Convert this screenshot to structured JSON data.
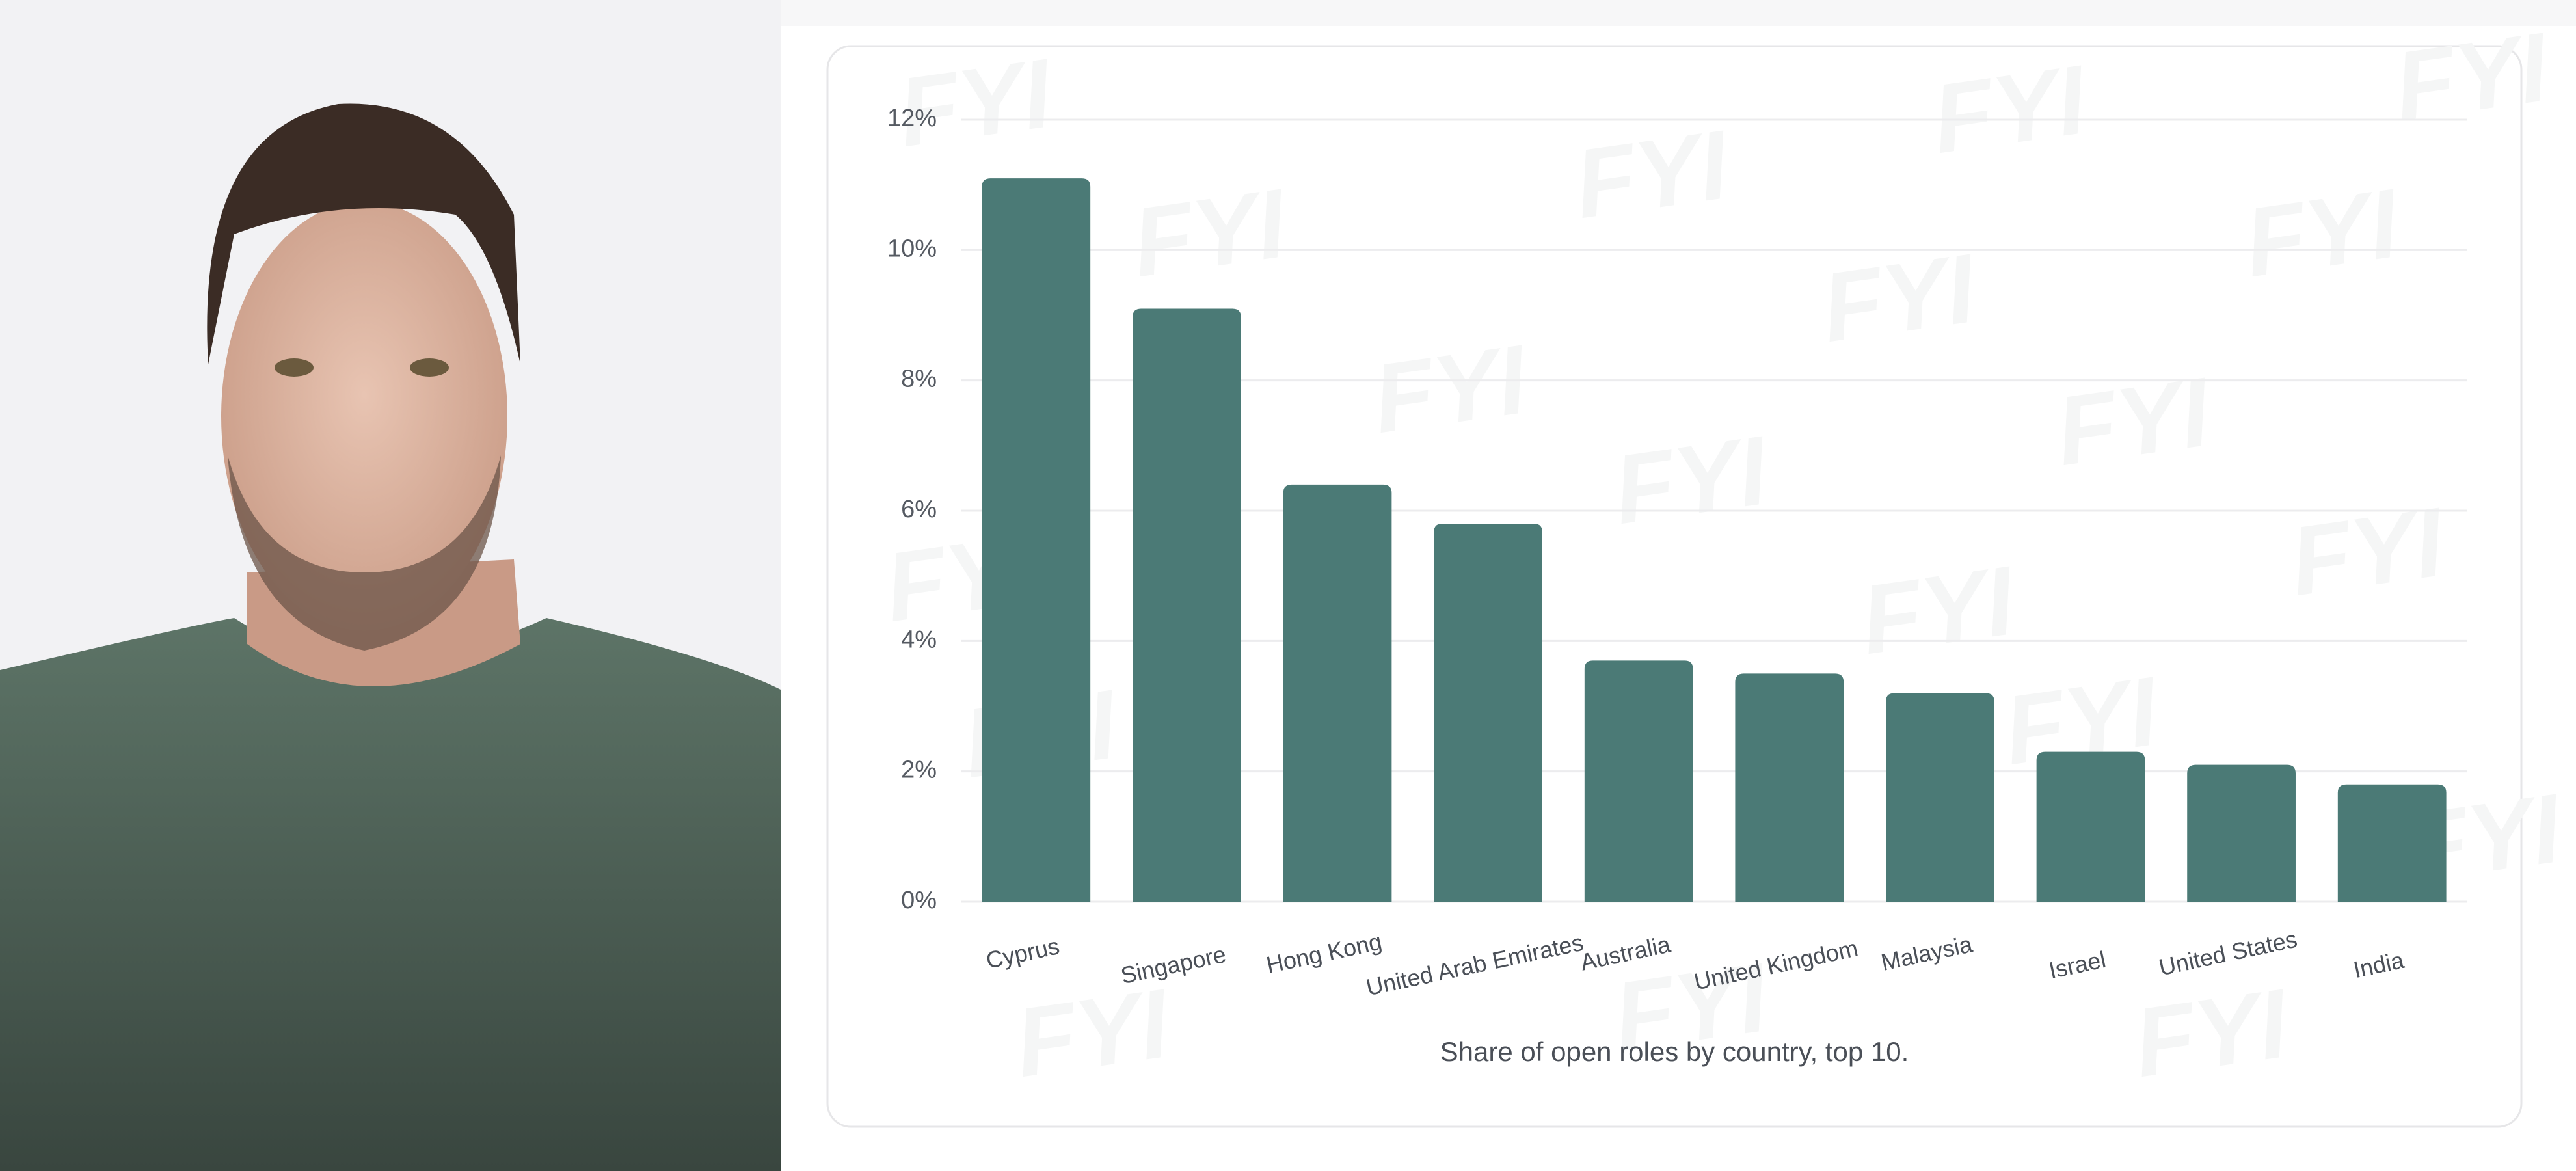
{
  "chart_data": {
    "type": "bar",
    "caption": "Share of open roles by country, top 10.",
    "watermark": "FYI",
    "categories": [
      "Cyprus",
      "Singapore",
      "Hong Kong",
      "United Arab Emirates",
      "Australia",
      "United Kingdom",
      "Malaysia",
      "Israel",
      "United States",
      "India"
    ],
    "values": [
      11.1,
      9.1,
      6.4,
      5.8,
      3.7,
      3.5,
      3.2,
      2.3,
      2.1,
      1.8
    ],
    "color": "#4b7a76",
    "ylim": [
      0,
      12
    ],
    "yticks": [
      {
        "value": 0,
        "label": "0%"
      },
      {
        "value": 2,
        "label": "2%"
      },
      {
        "value": 4,
        "label": "4%"
      },
      {
        "value": 6,
        "label": "6%"
      },
      {
        "value": 8,
        "label": "8%"
      },
      {
        "value": 10,
        "label": "10%"
      },
      {
        "value": 12,
        "label": "12%"
      }
    ],
    "grid": true
  }
}
